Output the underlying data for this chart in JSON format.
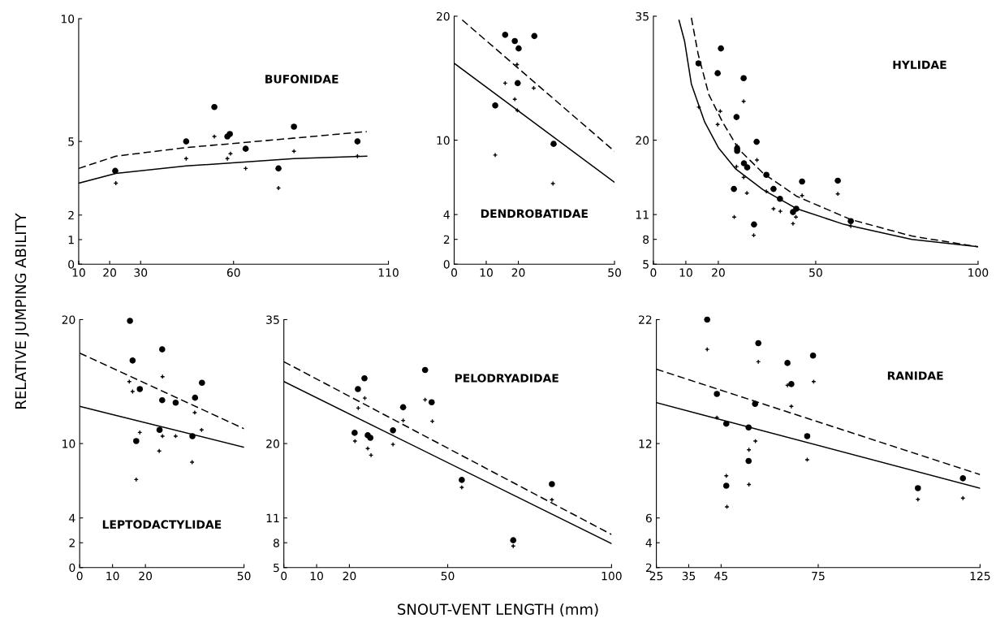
{
  "chart_data": [
    {
      "type": "scatter",
      "title": "BUFONIDAE",
      "ylabel": "RELATIVE JUMPING ABILITY",
      "xlim": [
        10,
        110
      ],
      "ylim": [
        0,
        10
      ],
      "xticks": [
        10,
        20,
        30,
        60,
        110
      ],
      "yticks": [
        0,
        1,
        2,
        5,
        10
      ],
      "grid": false,
      "legend": false,
      "series": [
        {
          "type": "scatter",
          "marker": "circle",
          "color": "#000000",
          "x": [
            21.8,
            44.7,
            53.8,
            58,
            58.8,
            63.9,
            74.5,
            79.5,
            100
          ],
          "values": [
            3.8,
            5.0,
            6.4,
            5.2,
            5.3,
            4.7,
            3.9,
            5.6,
            5.0
          ]
        },
        {
          "type": "scatter",
          "marker": "cross",
          "color": "#000000",
          "x": [
            22,
            44.7,
            53.8,
            58,
            59,
            63.9,
            74.5,
            79.5,
            100
          ],
          "values": [
            3.3,
            4.3,
            5.2,
            4.3,
            4.5,
            3.9,
            3.1,
            4.6,
            4.4
          ]
        },
        {
          "type": "line",
          "line_style": "dashed",
          "color": "#000000",
          "x": [
            10,
            22,
            44.7,
            63,
            103
          ],
          "values": [
            3.9,
            4.4,
            4.75,
            4.95,
            5.4
          ]
        },
        {
          "type": "line",
          "line_style": "solid",
          "color": "#000000",
          "x": [
            10,
            22,
            44.7,
            79.5,
            103
          ],
          "values": [
            3.3,
            3.7,
            4.0,
            4.3,
            4.4
          ]
        }
      ]
    },
    {
      "type": "scatter",
      "title": "DENDROBATIDAE",
      "xlim": [
        0,
        50
      ],
      "ylim": [
        0,
        20
      ],
      "xticks": [
        0,
        10,
        20,
        50
      ],
      "yticks": [
        0,
        2,
        4,
        10,
        20
      ],
      "grid": false,
      "legend": false,
      "series": [
        {
          "type": "scatter",
          "marker": "circle",
          "color": "#000000",
          "x": [
            15.9,
            18.9,
            20.1,
            25.0,
            19.8,
            12.8,
            31.0
          ],
          "values": [
            18.5,
            18.0,
            17.4,
            18.4,
            14.6,
            12.8,
            9.7
          ]
        },
        {
          "type": "scatter",
          "marker": "cross",
          "color": "#000000",
          "x": [
            19.6,
            15.9,
            24.8,
            18.9,
            19.7,
            12.8,
            30.8
          ],
          "values": [
            16.1,
            14.6,
            14.2,
            13.3,
            12.4,
            8.8,
            6.5
          ]
        },
        {
          "type": "line",
          "line_style": "dashed",
          "color": "#000000",
          "x": [
            2.5,
            50
          ],
          "values": [
            19.7,
            9.1
          ]
        },
        {
          "type": "line",
          "line_style": "solid",
          "color": "#000000",
          "x": [
            0,
            50
          ],
          "values": [
            16.2,
            6.6
          ]
        }
      ]
    },
    {
      "type": "scatter",
      "title": "HYLIDAE",
      "xlim": [
        0,
        100
      ],
      "ylim": [
        5,
        35
      ],
      "xticks": [
        0,
        10,
        20,
        50,
        100
      ],
      "yticks": [
        5,
        8,
        11,
        20,
        35
      ],
      "grid": false,
      "legend": false,
      "series": [
        {
          "type": "scatter",
          "marker": "circle",
          "color": "#000000",
          "x": [
            13.9,
            20.8,
            19.8,
            27.8,
            25.6,
            31.8,
            25.8,
            25.8,
            27.9,
            28.9,
            34.8,
            24.8,
            37.0,
            45.8,
            56.8,
            39.0,
            44.0,
            43.0,
            31.0,
            60.8
          ],
          "values": [
            29.3,
            31.1,
            28.1,
            27.5,
            22.8,
            19.8,
            19.0,
            18.7,
            17.2,
            16.7,
            15.8,
            14.1,
            14.1,
            15.0,
            15.1,
            12.9,
            11.7,
            11.3,
            9.8,
            10.2
          ]
        },
        {
          "type": "scatter",
          "marker": "cross",
          "color": "#000000",
          "x": [
            14.0,
            20.6,
            19.8,
            27.8,
            25.8,
            31.9,
            25.6,
            27.8,
            28.8,
            34.8,
            45.8,
            56.8,
            37.0,
            39.1,
            24.9,
            43.9,
            43.0,
            30.9,
            60.8
          ],
          "values": [
            24.0,
            23.5,
            21.9,
            24.7,
            19.3,
            17.6,
            16.8,
            15.5,
            13.6,
            13.8,
            13.3,
            13.5,
            11.7,
            11.4,
            10.7,
            10.7,
            9.9,
            8.5,
            9.6
          ]
        },
        {
          "type": "line",
          "line_style": "dashed",
          "color": "#000000",
          "x": [
            11.7,
            13.8,
            17.1,
            21.3,
            26.3,
            33.8,
            44.2,
            60.8,
            79.6,
            100
          ],
          "values": [
            34.8,
            30.4,
            25.5,
            22.2,
            18.9,
            16.0,
            13.2,
            10.4,
            8.4,
            7.1
          ]
        },
        {
          "type": "line",
          "line_style": "solid",
          "color": "#000000",
          "x": [
            7.9,
            9.6,
            11.7,
            15.8,
            20,
            25.4,
            33.8,
            44.2,
            58.8,
            79.6,
            100
          ],
          "values": [
            34.5,
            32.0,
            26.8,
            22.2,
            19.1,
            16.5,
            14.0,
            11.7,
            9.8,
            8.0,
            7.1
          ]
        }
      ]
    },
    {
      "type": "scatter",
      "title": "LEPTODACTYLIDAE",
      "xlim": [
        0,
        50
      ],
      "ylim": [
        0,
        20
      ],
      "xticks": [
        0,
        10,
        20,
        50
      ],
      "yticks": [
        0,
        2,
        4,
        10,
        20
      ],
      "grid": false,
      "legend": false,
      "series": [
        {
          "type": "scatter",
          "marker": "circle",
          "color": "#000000",
          "x": [
            15.3,
            16.1,
            25.1,
            18.3,
            37.2,
            35.1,
            25.1,
            29.2,
            24.3,
            34.3,
            17.2
          ],
          "values": [
            19.9,
            16.7,
            17.6,
            14.4,
            14.9,
            13.7,
            13.5,
            13.3,
            11.1,
            10.6,
            10.2
          ]
        },
        {
          "type": "scatter",
          "marker": "cross",
          "color": "#000000",
          "x": [
            15.1,
            16.1,
            25.2,
            35.0,
            37.1,
            18.3,
            25.2,
            29.2,
            24.2,
            34.2,
            17.2
          ],
          "values": [
            15.0,
            14.2,
            15.4,
            12.5,
            11.1,
            10.9,
            10.6,
            10.6,
            9.4,
            8.5,
            7.1
          ]
        },
        {
          "type": "line",
          "line_style": "dashed",
          "color": "#000000",
          "x": [
            0,
            50
          ],
          "values": [
            17.3,
            11.2
          ]
        },
        {
          "type": "line",
          "line_style": "solid",
          "color": "#000000",
          "x": [
            0,
            50
          ],
          "values": [
            13.0,
            9.7
          ]
        }
      ]
    },
    {
      "type": "scatter",
      "title": "PELODRYADIDAE",
      "xlabel": "SNOUT-VENT LENGTH (mm)",
      "xlim": [
        0,
        100
      ],
      "ylim": [
        5,
        35
      ],
      "xticks": [
        0,
        10,
        20,
        50,
        100
      ],
      "yticks": [
        5,
        8,
        11,
        20,
        35
      ],
      "grid": false,
      "legend": false,
      "series": [
        {
          "type": "scatter",
          "marker": "circle",
          "color": "#000000",
          "x": [
            21.6,
            22.6,
            24.6,
            25.6,
            26.4,
            33.3,
            36.4,
            43.1,
            45.1,
            54.3,
            70.0,
            81.8
          ],
          "values": [
            21.3,
            26.6,
            27.9,
            21.0,
            20.7,
            21.6,
            24.4,
            28.9,
            25.0,
            15.6,
            8.3,
            15.1
          ]
        },
        {
          "type": "scatter",
          "marker": "cross",
          "color": "#000000",
          "x": [
            21.7,
            22.7,
            24.7,
            25.6,
            26.6,
            33.3,
            36.4,
            43.1,
            45.3,
            54.3,
            70.0,
            81.8
          ],
          "values": [
            20.3,
            24.3,
            25.5,
            19.4,
            18.6,
            19.9,
            22.8,
            25.3,
            22.7,
            14.7,
            7.6,
            13.2
          ]
        },
        {
          "type": "line",
          "line_style": "dashed",
          "color": "#000000",
          "x": [
            0,
            100
          ],
          "values": [
            29.9,
            9.0
          ]
        },
        {
          "type": "line",
          "line_style": "solid",
          "color": "#000000",
          "x": [
            0,
            100
          ],
          "values": [
            27.5,
            7.9
          ]
        }
      ]
    },
    {
      "type": "scatter",
      "title": "RANIDAE",
      "xlim": [
        25,
        125
      ],
      "ylim": [
        2,
        22
      ],
      "xticks": [
        25,
        35,
        45,
        75,
        125
      ],
      "yticks": [
        2,
        4,
        6,
        12,
        22
      ],
      "grid": false,
      "legend": false,
      "series": [
        {
          "type": "scatter",
          "marker": "circle",
          "color": "#000000",
          "x": [
            40.7,
            56.5,
            73.4,
            65.5,
            66.7,
            43.7,
            55.5,
            46.6,
            53.5,
            71.6,
            53.5,
            46.6,
            105.8,
            119.7
          ],
          "values": [
            22.0,
            20.1,
            19.1,
            18.5,
            16.8,
            16.0,
            15.2,
            13.6,
            13.3,
            12.6,
            10.6,
            8.6,
            8.4,
            9.2
          ]
        },
        {
          "type": "scatter",
          "marker": "cross",
          "color": "#000000",
          "x": [
            40.7,
            56.5,
            73.6,
            65.5,
            66.7,
            43.7,
            55.6,
            53.6,
            71.6,
            46.6,
            53.6,
            46.8,
            105.8,
            119.7
          ],
          "values": [
            19.6,
            18.6,
            17.0,
            16.7,
            15.0,
            14.1,
            12.2,
            11.5,
            10.7,
            9.4,
            8.7,
            6.9,
            7.5,
            7.6
          ]
        },
        {
          "type": "line",
          "line_style": "dashed",
          "color": "#000000",
          "x": [
            25,
            125
          ],
          "values": [
            18.0,
            9.5
          ]
        },
        {
          "type": "line",
          "line_style": "solid",
          "color": "#000000",
          "x": [
            25,
            125
          ],
          "values": [
            15.3,
            8.4
          ]
        }
      ]
    }
  ]
}
